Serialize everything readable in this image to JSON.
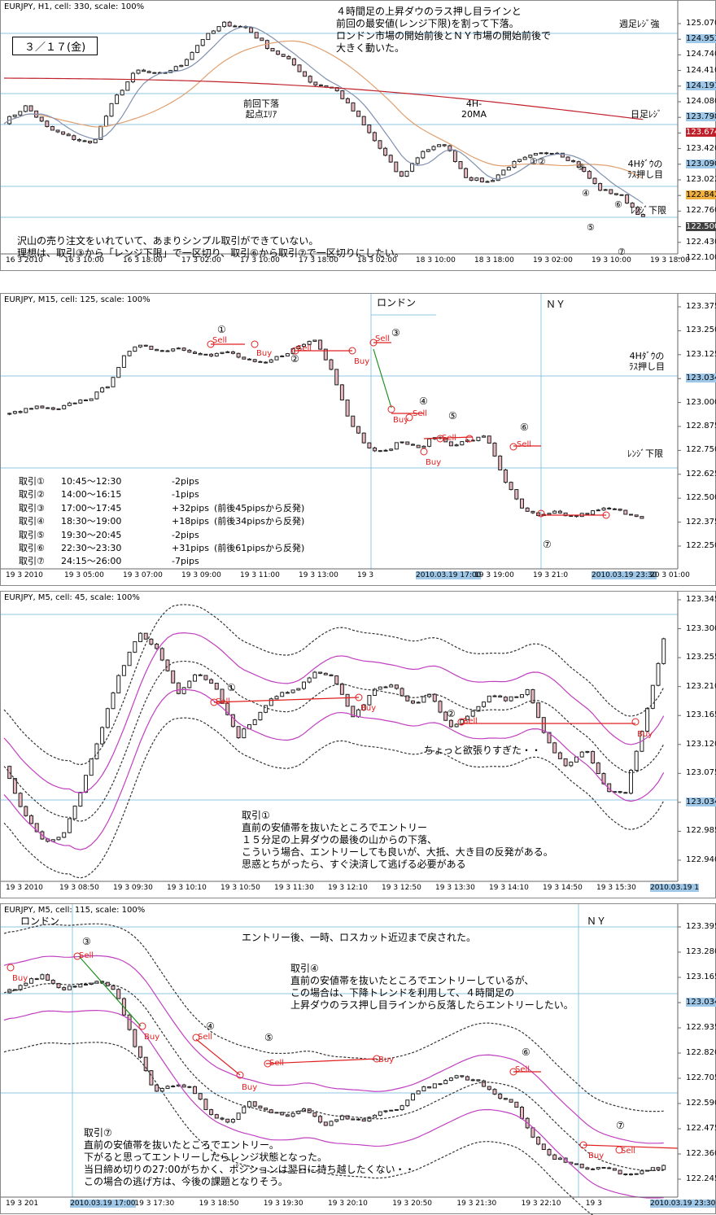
{
  "colors": {
    "bull": "#ffffff",
    "bear": "#e8b8c0",
    "candle_line": "#222222",
    "level": "#8fc4e0",
    "ma_red": "#c0202a",
    "ma_orange": "#e0a070",
    "ma_gray": "#8090b0",
    "band_purple": "#c040c0",
    "band_dash": "#333333",
    "trade": "#e02020",
    "trend_green": "#209020",
    "tag_blue": "#9fc8e8",
    "tag_red": "#c0202a",
    "tag_orange": "#f0b040",
    "tag_dark": "#404040"
  },
  "panel1": {
    "title": "EURJPY, H1, cell: 330, scale: 100%",
    "date_box": "３／１７(金)",
    "note_top": "４時間足の上昇ダウのラス押し目ラインと\n前回の最安値(レンジ下限)を割って下落。\nロンドン市場の開始前後とＮＹ市場の開始前後で\n大きく動いた。",
    "label_weekly": "週足ﾚｼﾞ強",
    "label_daily": "日足ﾚｼﾞ",
    "label_4h": "4Hﾀﾞｳの\nﾗｽ押し目",
    "label_range_low": "ﾚﾝｼﾞ下限",
    "label_ma": "4H-\n20MA",
    "label_origin": "前回下落\n起点ｴﾘｱ",
    "note_bottom": "沢山の売り注文をいれていて、あまりシンプル取引ができていない。\n理想は、取引③から「レンジ下限」で一区切り、取引⑥から取引⑦で一区切りにしたい。",
    "marks": [
      "①②",
      "③",
      "④",
      "⑤",
      "⑥",
      "⑦"
    ],
    "yaxis": [
      "125.070",
      "124.953",
      "124.740",
      "124.410",
      "124.191",
      "124.080",
      "123.798",
      "123.674",
      "123.420",
      "123.090",
      "123.022",
      "122.842",
      "122.760",
      "122.500",
      "122.430",
      "122.100"
    ],
    "xaxis": [
      "16 3 2010",
      "16 3 10:00",
      "16 3 18:00",
      "17 3 02:00",
      "17 3 10:00",
      "17 3 18:00",
      "18 3 02:00",
      "18 3 10:00",
      "18 3 18:00",
      "19 3 02:00",
      "19 3 10:00",
      "19 3 18:00"
    ]
  },
  "panel2": {
    "title": "EURJPY, M15, cell: 125, scale: 100%",
    "label_london": "ロンドン",
    "label_ny": "ＮＹ",
    "label_4h": "4Hﾀﾞｳの\nﾗｽ押し目",
    "label_range_low": "ﾚﾝｼﾞ下限",
    "trades": [
      {
        "id": "取引①",
        "time": "10:45～12:30",
        "pips": "-2pips",
        "note": ""
      },
      {
        "id": "取引②",
        "time": "14:00～16:15",
        "pips": "-1pips",
        "note": ""
      },
      {
        "id": "取引③",
        "time": "17:00～17:45",
        "pips": "+32pips",
        "note": "(前後45pipsから反発)"
      },
      {
        "id": "取引④",
        "time": "18:30～19:00",
        "pips": "+18pips",
        "note": "(前後34pipsから反発)"
      },
      {
        "id": "取引⑤",
        "time": "19:30～20:45",
        "pips": "-2pips",
        "note": ""
      },
      {
        "id": "取引⑥",
        "time": "22:30～23:30",
        "pips": "+31pips",
        "note": "(前後61pipsから反発)"
      },
      {
        "id": "取引⑦",
        "time": "24:15～26:00",
        "pips": "-7pips",
        "note": ""
      }
    ],
    "yaxis": [
      "123.375",
      "123.250",
      "123.125",
      "123.034",
      "123.000",
      "122.875",
      "122.750",
      "122.625",
      "122.500",
      "122.375",
      "122.250"
    ],
    "xaxis": [
      "19 3 2010",
      "19 3 05:00",
      "19 3 07:00",
      "19 3 09:00",
      "19 3 11:00",
      "19 3 13:00",
      "19 3",
      "2010.03.19 17:00",
      "19 3 19:00",
      "19 3 21:0",
      "2010.03.19 23:30",
      "20 3 01:00"
    ]
  },
  "panel3": {
    "title": "EURJPY, M5, cell: 45, scale: 100%",
    "note_greedy": "ちょっと欲張りすぎた・・",
    "note": "取引①\n直前の安値帯を抜いたところでエントリー\n１５分足の上昇ダウの最後の山からの下落、\nこういう場合、エントリーしても良いが、大抵、大き目の反発がある。\n思惑とちがったら、すぐ決済して逃げる必要がある",
    "yaxis": [
      "123.345",
      "123.300",
      "123.255",
      "123.210",
      "123.165",
      "123.120",
      "123.075",
      "123.034",
      "122.985",
      "122.940"
    ],
    "xaxis": [
      "19 3 2010",
      "19 3 08:50",
      "19 3 09:30",
      "19 3 10:10",
      "19 3 10:50",
      "19 3 11:30",
      "19 3 12:10",
      "19 3 12:50",
      "19 3 13:30",
      "19 3 14:10",
      "19 3 14:50",
      "19 3 15:30",
      "2010.03.19 1"
    ]
  },
  "panel4": {
    "title": "EURJPY, M5, cell: 115, scale: 100%",
    "label_london": "ロンドン",
    "label_ny": "ＮＹ",
    "note_stop": "エントリー後、一時、ロスカット近辺まで戻された。",
    "note4": "取引④\n直前の安値帯を抜いたところでエントリーしているが、\nこの場合は、下降トレンドを利用して、４時間足の\n上昇ダウのラス押し目ラインから反落したらエントリーしたい。",
    "note7": "取引⑦\n直前の安値帯を抜いたところでエントリー。\n下がると思ってエントリーしたらレンジ状態となった。\n当日締め切りの27:00がちかく、ポジションは翌日に持ち越したくない・・\nこの場合の逃げ方は、今後の課題となりそう。",
    "yaxis": [
      "123.395",
      "123.280",
      "123.165",
      "123.034",
      "122.935",
      "122.820",
      "122.705",
      "122.590",
      "122.475",
      "122.360",
      "122.245"
    ],
    "xaxis": [
      "19 3 201",
      "2010.03.19 17:00",
      "19 3 17:30",
      "19 3 18:50",
      "19 3 19:30",
      "19 3 20:10",
      "19 3 20:50",
      "19 3 21:30",
      "19 3 22:10",
      "19 3",
      "2010.03.19 23:30"
    ]
  },
  "signals": {
    "sell": "Sell",
    "buy": "Buy"
  }
}
